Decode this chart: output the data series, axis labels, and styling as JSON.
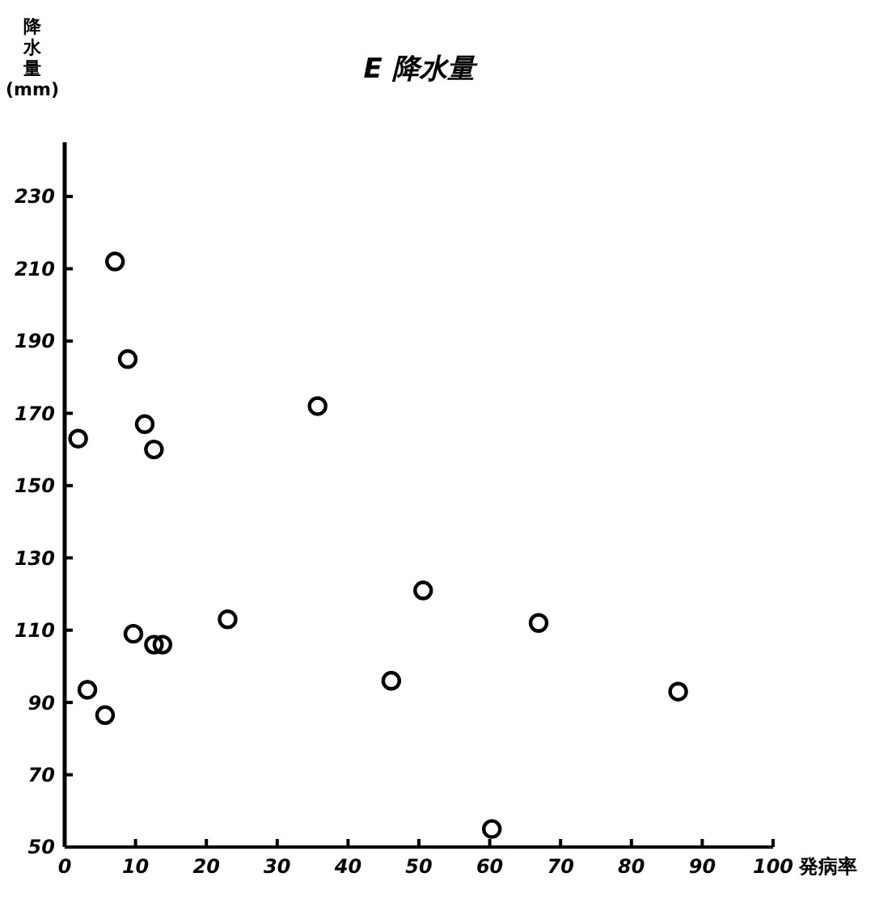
{
  "chart_data": {
    "type": "scatter",
    "title": "E 降水量",
    "xlabel": "発病率",
    "ylabel": "降水量 (mm)",
    "xlim": [
      0,
      100
    ],
    "xticks": [
      0,
      10,
      20,
      30,
      40,
      50,
      60,
      70,
      80,
      90,
      100
    ],
    "ylim": [
      50,
      245
    ],
    "yticks": [
      50,
      70,
      90,
      110,
      130,
      150,
      170,
      190,
      210,
      230
    ],
    "marker": "circle",
    "grid": false,
    "series": [
      {
        "color": "#000000",
        "x": [
          1.9,
          7.1,
          8.9,
          11.3,
          12.6,
          35.7,
          50.6,
          23,
          9.7,
          12.6,
          13.8,
          3.2,
          5.7,
          46.1,
          66.9,
          86.6,
          60.3
        ],
        "values": [
          163,
          212,
          185,
          167,
          160,
          172,
          121,
          113,
          109,
          106,
          106,
          93.5,
          86.5,
          96,
          112,
          93,
          55
        ]
      }
    ]
  }
}
